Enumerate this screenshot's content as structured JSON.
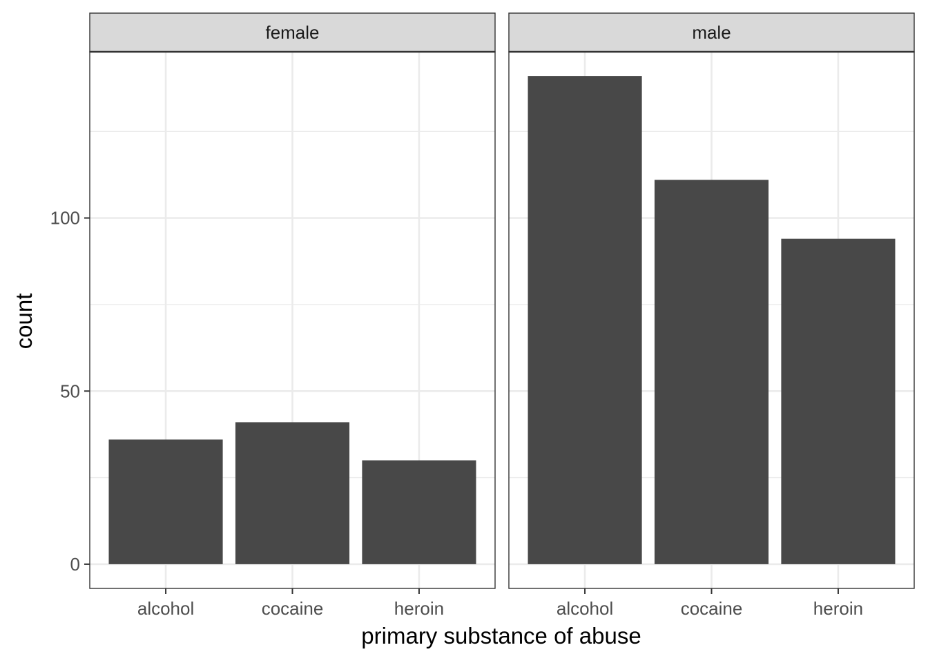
{
  "chart_data": {
    "type": "bar",
    "facet_variable": "sex",
    "xlabel": "primary substance of abuse",
    "ylabel": "count",
    "categories": [
      "alcohol",
      "cocaine",
      "heroin"
    ],
    "ylim": [
      -7,
      148
    ],
    "yticks": [
      0,
      50,
      100
    ],
    "grid": true,
    "theme": "bw",
    "bar_color": "#484848",
    "panels": [
      {
        "label": "female",
        "values": [
          36,
          41,
          30
        ]
      },
      {
        "label": "male",
        "values": [
          141,
          111,
          94
        ]
      }
    ]
  }
}
